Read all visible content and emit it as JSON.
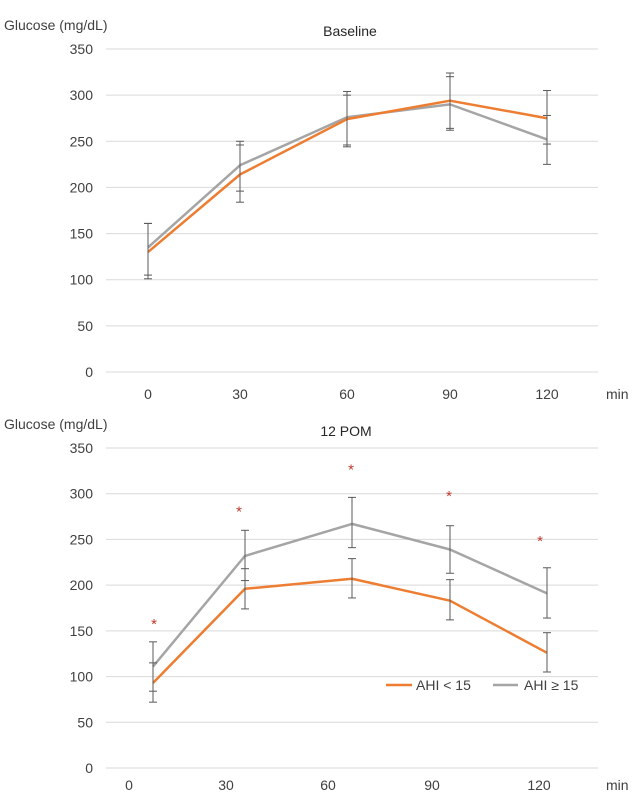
{
  "legend": {
    "series": [
      "AHI < 15",
      "AHI ≥ 15"
    ]
  },
  "chart_data": [
    {
      "type": "line",
      "title": "Baseline",
      "ylabel": "Glucose (mg/dL)",
      "xlabel": "min",
      "categories": [
        "0",
        "30",
        "60",
        "90",
        "120"
      ],
      "ylim": [
        0,
        350
      ],
      "yticks": [
        0,
        50,
        100,
        150,
        200,
        250,
        300,
        350
      ],
      "grid": true,
      "series": [
        {
          "name": "AHI < 15",
          "color": "#ED7D31",
          "values": [
            130,
            214,
            274,
            294,
            275
          ],
          "err_low": [
            101,
            184,
            246,
            264,
            247
          ],
          "err_high": [
            161,
            246,
            304,
            324,
            305
          ]
        },
        {
          "name": "AHI ≥ 15",
          "color": "#A5A5A5",
          "values": [
            135,
            224,
            276,
            290,
            252
          ],
          "err_low": [
            105,
            196,
            244,
            262,
            225
          ],
          "err_high": [
            161,
            250,
            300,
            320,
            278
          ]
        }
      ],
      "annotations": []
    },
    {
      "type": "line",
      "title": "12 POM",
      "ylabel": "Glucose (mg/dL)",
      "xlabel": "min",
      "categories": [
        "0",
        "30",
        "60",
        "90",
        "120"
      ],
      "ylim": [
        0,
        350
      ],
      "yticks": [
        0,
        50,
        100,
        150,
        200,
        250,
        300,
        350
      ],
      "grid": true,
      "legend": "bottom-right",
      "series": [
        {
          "name": "AHI < 15",
          "color": "#ED7D31",
          "values": [
            93,
            196,
            207,
            183,
            126
          ],
          "err_low": [
            72,
            174,
            186,
            162,
            105
          ],
          "err_high": [
            115,
            218,
            229,
            206,
            148
          ]
        },
        {
          "name": "AHI ≥ 15",
          "color": "#A5A5A5",
          "values": [
            111,
            232,
            267,
            239,
            191
          ],
          "err_low": [
            84,
            205,
            241,
            213,
            164
          ],
          "err_high": [
            138,
            260,
            296,
            265,
            219
          ]
        }
      ],
      "annotations": [
        {
          "text": "*",
          "x": "0",
          "y": 163
        },
        {
          "text": "*",
          "x": "30",
          "y": 286
        },
        {
          "text": "*",
          "x": "60",
          "y": 332
        },
        {
          "text": "*",
          "x": "90",
          "y": 303
        },
        {
          "text": "*",
          "x": "120",
          "y": 254
        }
      ]
    }
  ]
}
